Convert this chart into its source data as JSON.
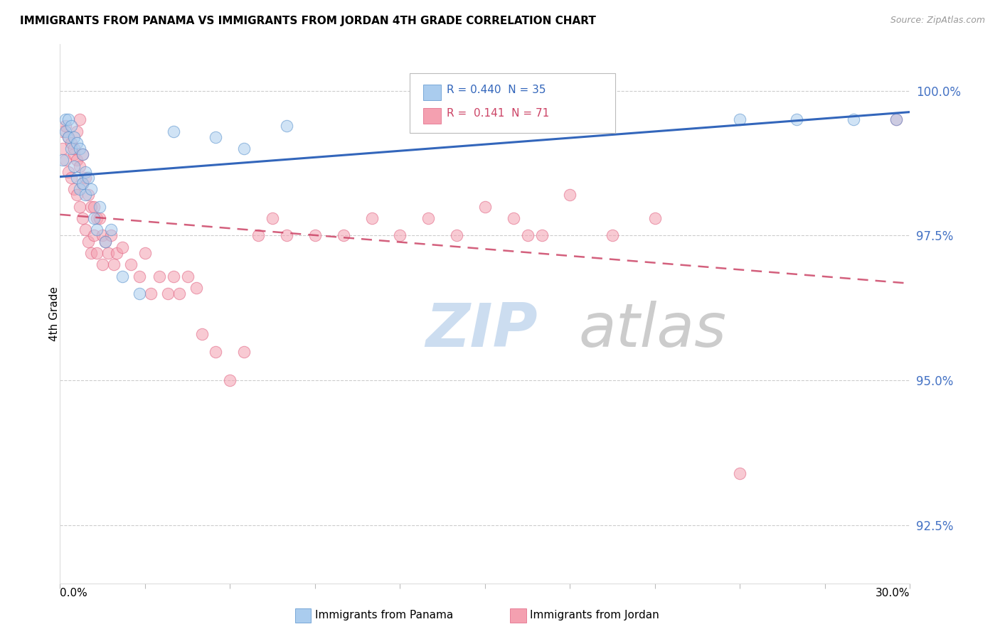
{
  "title": "IMMIGRANTS FROM PANAMA VS IMMIGRANTS FROM JORDAN 4TH GRADE CORRELATION CHART",
  "source": "Source: ZipAtlas.com",
  "ylabel": "4th Grade",
  "ylabel_ticks": [
    92.5,
    95.0,
    97.5,
    100.0
  ],
  "ylabel_tick_labels": [
    "92.5%",
    "95.0%",
    "97.5%",
    "100.0%"
  ],
  "xmin": 0.0,
  "xmax": 0.3,
  "ymin": 91.5,
  "ymax": 100.8,
  "legend_r_panama": "R = 0.440",
  "legend_n_panama": "N = 35",
  "legend_r_jordan": "R =  0.141",
  "legend_n_jordan": "N = 71",
  "panama_color": "#aaccee",
  "jordan_color": "#f4a0b0",
  "panama_edge_color": "#5590cc",
  "jordan_edge_color": "#e06080",
  "panama_line_color": "#3366bb",
  "jordan_line_color": "#cc4466",
  "watermark_zip_color": "#ccddf0",
  "watermark_atlas_color": "#cccccc",
  "scatter_panama_x": [
    0.001,
    0.002,
    0.002,
    0.003,
    0.003,
    0.004,
    0.004,
    0.005,
    0.005,
    0.006,
    0.006,
    0.007,
    0.007,
    0.008,
    0.008,
    0.009,
    0.009,
    0.01,
    0.011,
    0.012,
    0.013,
    0.014,
    0.016,
    0.018,
    0.022,
    0.028,
    0.04,
    0.055,
    0.065,
    0.08,
    0.18,
    0.24,
    0.26,
    0.28,
    0.295
  ],
  "scatter_panama_y": [
    98.8,
    99.5,
    99.3,
    99.2,
    99.5,
    99.0,
    99.4,
    98.7,
    99.2,
    98.5,
    99.1,
    98.3,
    99.0,
    98.4,
    98.9,
    98.2,
    98.6,
    98.5,
    98.3,
    97.8,
    97.6,
    98.0,
    97.4,
    97.6,
    96.8,
    96.5,
    99.3,
    99.2,
    99.0,
    99.4,
    99.5,
    99.5,
    99.5,
    99.5,
    99.5
  ],
  "scatter_jordan_x": [
    0.001,
    0.001,
    0.002,
    0.002,
    0.003,
    0.003,
    0.004,
    0.004,
    0.005,
    0.005,
    0.005,
    0.006,
    0.006,
    0.006,
    0.007,
    0.007,
    0.007,
    0.008,
    0.008,
    0.008,
    0.009,
    0.009,
    0.01,
    0.01,
    0.011,
    0.011,
    0.012,
    0.012,
    0.013,
    0.013,
    0.014,
    0.015,
    0.015,
    0.016,
    0.017,
    0.018,
    0.019,
    0.02,
    0.022,
    0.025,
    0.028,
    0.03,
    0.032,
    0.035,
    0.038,
    0.04,
    0.042,
    0.045,
    0.048,
    0.05,
    0.055,
    0.06,
    0.065,
    0.07,
    0.075,
    0.08,
    0.09,
    0.1,
    0.11,
    0.12,
    0.13,
    0.14,
    0.15,
    0.16,
    0.165,
    0.17,
    0.18,
    0.195,
    0.21,
    0.24,
    0.295
  ],
  "scatter_jordan_y": [
    99.3,
    99.0,
    99.4,
    98.8,
    99.2,
    98.6,
    99.1,
    98.5,
    98.9,
    98.3,
    99.0,
    98.8,
    98.2,
    99.3,
    99.5,
    98.0,
    98.7,
    98.4,
    98.9,
    97.8,
    98.5,
    97.6,
    98.2,
    97.4,
    98.0,
    97.2,
    98.0,
    97.5,
    97.8,
    97.2,
    97.8,
    97.5,
    97.0,
    97.4,
    97.2,
    97.5,
    97.0,
    97.2,
    97.3,
    97.0,
    96.8,
    97.2,
    96.5,
    96.8,
    96.5,
    96.8,
    96.5,
    96.8,
    96.6,
    95.8,
    95.5,
    95.0,
    95.5,
    97.5,
    97.8,
    97.5,
    97.5,
    97.5,
    97.8,
    97.5,
    97.8,
    97.5,
    98.0,
    97.8,
    97.5,
    97.5,
    98.2,
    97.5,
    97.8,
    93.4,
    99.5
  ]
}
